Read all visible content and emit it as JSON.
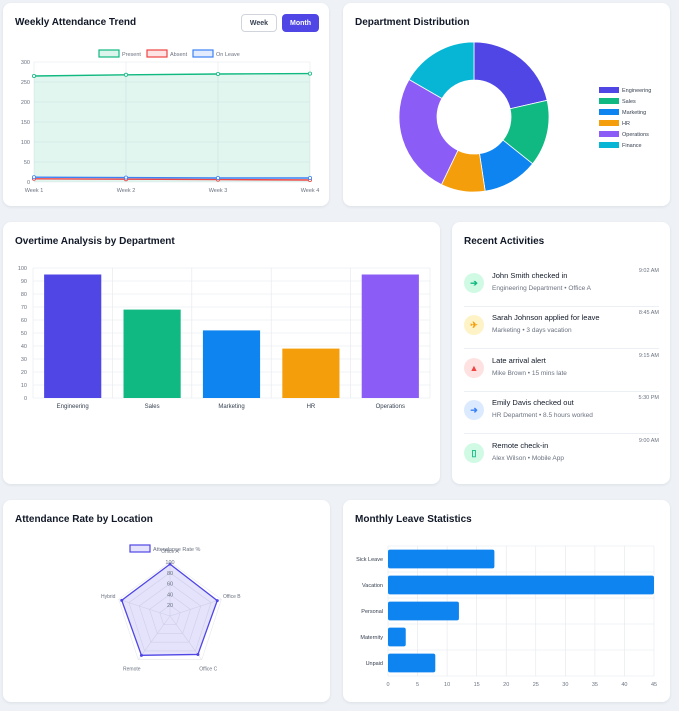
{
  "weekly": {
    "title": "Weekly Attendance Trend",
    "toggle_week": "Week",
    "toggle_month": "Month",
    "chart_data": {
      "type": "line",
      "categories": [
        "Week 1",
        "Week 2",
        "Week 3",
        "Week 4"
      ],
      "ylim": [
        0,
        300
      ],
      "yticks": [
        0,
        50,
        100,
        150,
        200,
        250,
        300
      ],
      "grid": true,
      "legend": "top",
      "series": [
        {
          "name": "Present",
          "values": [
            265,
            268,
            270,
            271
          ],
          "color": "#10b981"
        },
        {
          "name": "Absent",
          "values": [
            8,
            7,
            6,
            5
          ],
          "color": "#ef4444"
        },
        {
          "name": "On Leave",
          "values": [
            12,
            11,
            10,
            10
          ],
          "color": "#3b82f6"
        }
      ]
    }
  },
  "dept": {
    "title": "Department Distribution",
    "chart_data": {
      "type": "pie",
      "legend": "right",
      "categories": [
        "Engineering",
        "Sales",
        "Marketing",
        "HR",
        "Operations",
        "Finance"
      ],
      "values": [
        45,
        30,
        25,
        20,
        55,
        35
      ],
      "colors": [
        "#4f46e5",
        "#10b981",
        "#0d84f0",
        "#f59e0b",
        "#8b5cf6",
        "#06b6d4"
      ]
    }
  },
  "overtime": {
    "title": "Overtime Analysis by Department",
    "chart_data": {
      "type": "bar",
      "categories": [
        "Engineering",
        "Sales",
        "Marketing",
        "HR",
        "Operations"
      ],
      "values": [
        95,
        68,
        52,
        38,
        95
      ],
      "colors": [
        "#4f46e5",
        "#10b981",
        "#0d84f0",
        "#f59e0b",
        "#8b5cf6"
      ],
      "ylim": [
        0,
        100
      ],
      "yticks": [
        0,
        10,
        20,
        30,
        40,
        50,
        60,
        70,
        80,
        90,
        100
      ],
      "grid": true
    }
  },
  "activities": {
    "title": "Recent Activities",
    "items": [
      {
        "icon": "➔",
        "icon_name": "check-in-icon",
        "bg": "#d1fae5",
        "fg": "#10b981",
        "title": "John Smith checked in",
        "sub": "Engineering Department • Office A",
        "time": "9:02 AM"
      },
      {
        "icon": "✈",
        "icon_name": "plane-icon",
        "bg": "#fef3c7",
        "fg": "#f59e0b",
        "title": "Sarah Johnson applied for leave",
        "sub": "Marketing • 3 days vacation",
        "time": "8:45 AM"
      },
      {
        "icon": "▲",
        "icon_name": "alert-icon",
        "bg": "#fee2e2",
        "fg": "#ef4444",
        "title": "Late arrival alert",
        "sub": "Mike Brown • 15 mins late",
        "time": "9:15 AM"
      },
      {
        "icon": "➜",
        "icon_name": "check-out-icon",
        "bg": "#dbeafe",
        "fg": "#3b82f6",
        "title": "Emily Davis checked out",
        "sub": "HR Department • 8.5 hours worked",
        "time": "5:30 PM"
      },
      {
        "icon": "▯",
        "icon_name": "mobile-icon",
        "bg": "#d1fae5",
        "fg": "#10b981",
        "title": "Remote check-in",
        "sub": "Alex Wilson • Mobile App",
        "time": "9:00 AM"
      }
    ]
  },
  "location": {
    "title": "Attendance Rate by Location",
    "chart_data": {
      "type": "radar",
      "categories": [
        "Office A",
        "Office B",
        "Office C",
        "Remote",
        "Hybrid"
      ],
      "series": [
        {
          "name": "Attendance Rate %",
          "values": [
            96,
            92,
            88,
            90,
            94
          ],
          "color": "#4f46e5"
        }
      ],
      "rlim": [
        0,
        100
      ],
      "rticks": [
        20,
        40,
        60,
        80,
        100
      ],
      "legend": "top"
    }
  },
  "leave": {
    "title": "Monthly Leave Statistics",
    "chart_data": {
      "type": "bar",
      "orientation": "horizontal",
      "categories": [
        "Sick Leave",
        "Vacation",
        "Personal",
        "Maternity",
        "Unpaid"
      ],
      "values": [
        18,
        45,
        12,
        3,
        8
      ],
      "color": "#0d84f0",
      "xlim": [
        0,
        45
      ],
      "xticks": [
        0,
        5,
        10,
        15,
        20,
        25,
        30,
        35,
        40,
        45
      ],
      "grid": true
    }
  }
}
